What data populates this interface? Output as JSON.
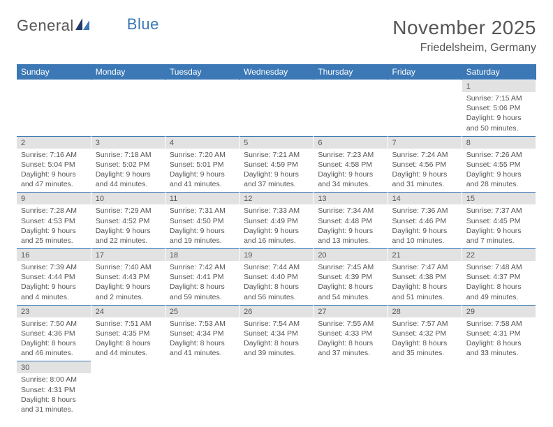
{
  "logo": {
    "part1": "General",
    "part2": "Blue"
  },
  "title": "November 2025",
  "location": "Friedelsheim, Germany",
  "colors": {
    "header_bg": "#3b78b5",
    "header_text": "#ffffff",
    "numrow_bg": "#e2e2e2",
    "body_text": "#555555",
    "page_bg": "#ffffff"
  },
  "typography": {
    "title_fontsize": 28,
    "location_fontsize": 16,
    "dayhead_fontsize": 12,
    "cell_fontsize": 10.5
  },
  "day_headers": [
    "Sunday",
    "Monday",
    "Tuesday",
    "Wednesday",
    "Thursday",
    "Friday",
    "Saturday"
  ],
  "weeks": [
    [
      null,
      null,
      null,
      null,
      null,
      null,
      {
        "n": "1",
        "sunrise": "Sunrise: 7:15 AM",
        "sunset": "Sunset: 5:06 PM",
        "dl1": "Daylight: 9 hours",
        "dl2": "and 50 minutes."
      }
    ],
    [
      {
        "n": "2",
        "sunrise": "Sunrise: 7:16 AM",
        "sunset": "Sunset: 5:04 PM",
        "dl1": "Daylight: 9 hours",
        "dl2": "and 47 minutes."
      },
      {
        "n": "3",
        "sunrise": "Sunrise: 7:18 AM",
        "sunset": "Sunset: 5:02 PM",
        "dl1": "Daylight: 9 hours",
        "dl2": "and 44 minutes."
      },
      {
        "n": "4",
        "sunrise": "Sunrise: 7:20 AM",
        "sunset": "Sunset: 5:01 PM",
        "dl1": "Daylight: 9 hours",
        "dl2": "and 41 minutes."
      },
      {
        "n": "5",
        "sunrise": "Sunrise: 7:21 AM",
        "sunset": "Sunset: 4:59 PM",
        "dl1": "Daylight: 9 hours",
        "dl2": "and 37 minutes."
      },
      {
        "n": "6",
        "sunrise": "Sunrise: 7:23 AM",
        "sunset": "Sunset: 4:58 PM",
        "dl1": "Daylight: 9 hours",
        "dl2": "and 34 minutes."
      },
      {
        "n": "7",
        "sunrise": "Sunrise: 7:24 AM",
        "sunset": "Sunset: 4:56 PM",
        "dl1": "Daylight: 9 hours",
        "dl2": "and 31 minutes."
      },
      {
        "n": "8",
        "sunrise": "Sunrise: 7:26 AM",
        "sunset": "Sunset: 4:55 PM",
        "dl1": "Daylight: 9 hours",
        "dl2": "and 28 minutes."
      }
    ],
    [
      {
        "n": "9",
        "sunrise": "Sunrise: 7:28 AM",
        "sunset": "Sunset: 4:53 PM",
        "dl1": "Daylight: 9 hours",
        "dl2": "and 25 minutes."
      },
      {
        "n": "10",
        "sunrise": "Sunrise: 7:29 AM",
        "sunset": "Sunset: 4:52 PM",
        "dl1": "Daylight: 9 hours",
        "dl2": "and 22 minutes."
      },
      {
        "n": "11",
        "sunrise": "Sunrise: 7:31 AM",
        "sunset": "Sunset: 4:50 PM",
        "dl1": "Daylight: 9 hours",
        "dl2": "and 19 minutes."
      },
      {
        "n": "12",
        "sunrise": "Sunrise: 7:33 AM",
        "sunset": "Sunset: 4:49 PM",
        "dl1": "Daylight: 9 hours",
        "dl2": "and 16 minutes."
      },
      {
        "n": "13",
        "sunrise": "Sunrise: 7:34 AM",
        "sunset": "Sunset: 4:48 PM",
        "dl1": "Daylight: 9 hours",
        "dl2": "and 13 minutes."
      },
      {
        "n": "14",
        "sunrise": "Sunrise: 7:36 AM",
        "sunset": "Sunset: 4:46 PM",
        "dl1": "Daylight: 9 hours",
        "dl2": "and 10 minutes."
      },
      {
        "n": "15",
        "sunrise": "Sunrise: 7:37 AM",
        "sunset": "Sunset: 4:45 PM",
        "dl1": "Daylight: 9 hours",
        "dl2": "and 7 minutes."
      }
    ],
    [
      {
        "n": "16",
        "sunrise": "Sunrise: 7:39 AM",
        "sunset": "Sunset: 4:44 PM",
        "dl1": "Daylight: 9 hours",
        "dl2": "and 4 minutes."
      },
      {
        "n": "17",
        "sunrise": "Sunrise: 7:40 AM",
        "sunset": "Sunset: 4:43 PM",
        "dl1": "Daylight: 9 hours",
        "dl2": "and 2 minutes."
      },
      {
        "n": "18",
        "sunrise": "Sunrise: 7:42 AM",
        "sunset": "Sunset: 4:41 PM",
        "dl1": "Daylight: 8 hours",
        "dl2": "and 59 minutes."
      },
      {
        "n": "19",
        "sunrise": "Sunrise: 7:44 AM",
        "sunset": "Sunset: 4:40 PM",
        "dl1": "Daylight: 8 hours",
        "dl2": "and 56 minutes."
      },
      {
        "n": "20",
        "sunrise": "Sunrise: 7:45 AM",
        "sunset": "Sunset: 4:39 PM",
        "dl1": "Daylight: 8 hours",
        "dl2": "and 54 minutes."
      },
      {
        "n": "21",
        "sunrise": "Sunrise: 7:47 AM",
        "sunset": "Sunset: 4:38 PM",
        "dl1": "Daylight: 8 hours",
        "dl2": "and 51 minutes."
      },
      {
        "n": "22",
        "sunrise": "Sunrise: 7:48 AM",
        "sunset": "Sunset: 4:37 PM",
        "dl1": "Daylight: 8 hours",
        "dl2": "and 49 minutes."
      }
    ],
    [
      {
        "n": "23",
        "sunrise": "Sunrise: 7:50 AM",
        "sunset": "Sunset: 4:36 PM",
        "dl1": "Daylight: 8 hours",
        "dl2": "and 46 minutes."
      },
      {
        "n": "24",
        "sunrise": "Sunrise: 7:51 AM",
        "sunset": "Sunset: 4:35 PM",
        "dl1": "Daylight: 8 hours",
        "dl2": "and 44 minutes."
      },
      {
        "n": "25",
        "sunrise": "Sunrise: 7:53 AM",
        "sunset": "Sunset: 4:34 PM",
        "dl1": "Daylight: 8 hours",
        "dl2": "and 41 minutes."
      },
      {
        "n": "26",
        "sunrise": "Sunrise: 7:54 AM",
        "sunset": "Sunset: 4:34 PM",
        "dl1": "Daylight: 8 hours",
        "dl2": "and 39 minutes."
      },
      {
        "n": "27",
        "sunrise": "Sunrise: 7:55 AM",
        "sunset": "Sunset: 4:33 PM",
        "dl1": "Daylight: 8 hours",
        "dl2": "and 37 minutes."
      },
      {
        "n": "28",
        "sunrise": "Sunrise: 7:57 AM",
        "sunset": "Sunset: 4:32 PM",
        "dl1": "Daylight: 8 hours",
        "dl2": "and 35 minutes."
      },
      {
        "n": "29",
        "sunrise": "Sunrise: 7:58 AM",
        "sunset": "Sunset: 4:31 PM",
        "dl1": "Daylight: 8 hours",
        "dl2": "and 33 minutes."
      }
    ],
    [
      {
        "n": "30",
        "sunrise": "Sunrise: 8:00 AM",
        "sunset": "Sunset: 4:31 PM",
        "dl1": "Daylight: 8 hours",
        "dl2": "and 31 minutes."
      },
      null,
      null,
      null,
      null,
      null,
      null
    ]
  ]
}
